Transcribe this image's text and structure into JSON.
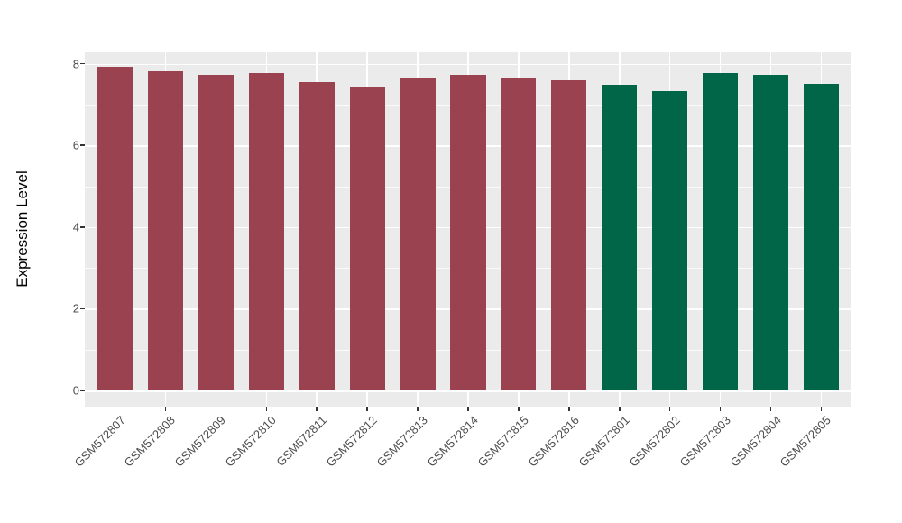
{
  "chart_data": {
    "type": "bar",
    "title": "",
    "xlabel": "",
    "ylabel": "Expression Level",
    "categories": [
      "GSM572807",
      "GSM572808",
      "GSM572809",
      "GSM572810",
      "GSM572811",
      "GSM572812",
      "GSM572813",
      "GSM572814",
      "GSM572815",
      "GSM572816",
      "GSM572801",
      "GSM572802",
      "GSM572803",
      "GSM572804",
      "GSM572805"
    ],
    "values": [
      7.92,
      7.81,
      7.73,
      7.76,
      7.55,
      7.45,
      7.63,
      7.73,
      7.64,
      7.59,
      7.48,
      7.33,
      7.76,
      7.73,
      7.51
    ],
    "colors": [
      "#9A4250",
      "#9A4250",
      "#9A4250",
      "#9A4250",
      "#9A4250",
      "#9A4250",
      "#9A4250",
      "#9A4250",
      "#9A4250",
      "#9A4250",
      "#016648",
      "#016648",
      "#016648",
      "#016648",
      "#016648"
    ],
    "group_palette": {
      "group_red": "#9A4250",
      "group_green": "#016648"
    },
    "ylim": [
      0,
      8
    ],
    "yticks": [
      0,
      2,
      4,
      6,
      8
    ],
    "yticks_minor": [
      1,
      3,
      5,
      7
    ],
    "x_tick_rotation_deg": 45,
    "legend": "none",
    "panel_background": "#EBEBEB",
    "grid_color": "#FFFFFF",
    "axis_text_color": "#4D4D4D",
    "axis_title_color": "#000000",
    "tick_mark_color": "#333333"
  }
}
